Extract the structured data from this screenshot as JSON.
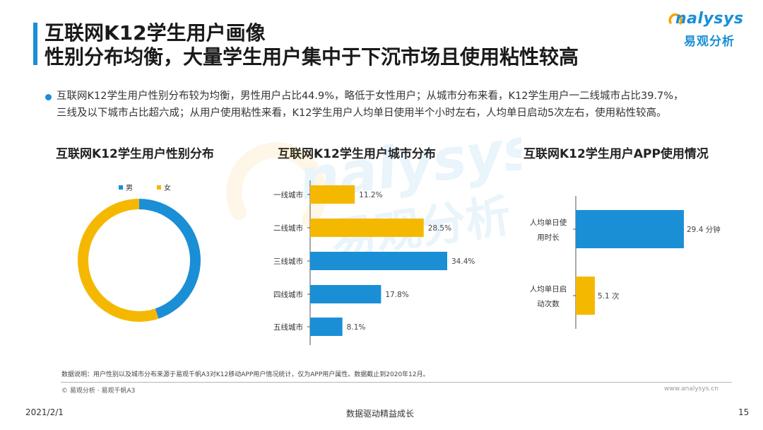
{
  "header": {
    "title_line1": "互联网K12学生用户画像",
    "title_line2": "性别分布均衡，大量学生用户集中于下沉市场且使用粘性较高"
  },
  "logo": {
    "word": "nalysys",
    "cn": "易观分析"
  },
  "summary": {
    "line1": "互联网K12学生用户性别分布较为均衡，男性用户占比44.9%，略低于女性用户；从城市分布来看，K12学生用户一二线城市占比39.7%，",
    "line2": "三线及以下城市占比超六成；从用户使用粘性来看，K12学生用户人均单日使用半个小时左右，人均单日启动5次左右，使用粘性较高。"
  },
  "colors": {
    "blue": "#1a8fd6",
    "gold": "#f5b800",
    "accent": "#1a8fd6"
  },
  "chart_data": [
    {
      "type": "pie",
      "title": "互联网K12学生用户性别分布",
      "legend": "top",
      "series": [
        {
          "name": "男",
          "value": 44.9,
          "color": "#1a8fd6"
        },
        {
          "name": "女",
          "value": 55.1,
          "color": "#f5b800"
        }
      ]
    },
    {
      "type": "bar",
      "orientation": "horizontal",
      "title": "互联网K12学生用户城市分布",
      "categories": [
        "一线城市",
        "二线城市",
        "三线城市",
        "四线城市",
        "五线城市"
      ],
      "values": [
        11.2,
        28.5,
        34.4,
        17.8,
        8.1
      ],
      "labels": [
        "11.2%",
        "28.5%",
        "34.4%",
        "17.8%",
        "8.1%"
      ],
      "colors": [
        "#f5b800",
        "#f5b800",
        "#1a8fd6",
        "#1a8fd6",
        "#1a8fd6"
      ],
      "xlim": [
        0,
        34.4
      ]
    },
    {
      "type": "bar",
      "orientation": "horizontal",
      "title": "互联网K12学生用户APP使用情况",
      "categories": [
        [
          "人均单日使",
          "用时长"
        ],
        [
          "人均单日启",
          "动次数"
        ]
      ],
      "values": [
        29.4,
        5.1
      ],
      "labels": [
        "29.4 分钟",
        "5.1 次"
      ],
      "colors": [
        "#1a8fd6",
        "#f5b800"
      ]
    }
  ],
  "footer": {
    "note": "数据说明：用户性别以及城市分布来源于易观千帆A3对K12移动APP用户情况统计，仅为APP用户属性。数据截止到2020年12月。",
    "copyright": "© 易观分析 · 易观千帆A3",
    "brand": "www.analysys.cn",
    "date": "2021/2/1",
    "center": "数据驱动精益成长",
    "page": "15"
  }
}
